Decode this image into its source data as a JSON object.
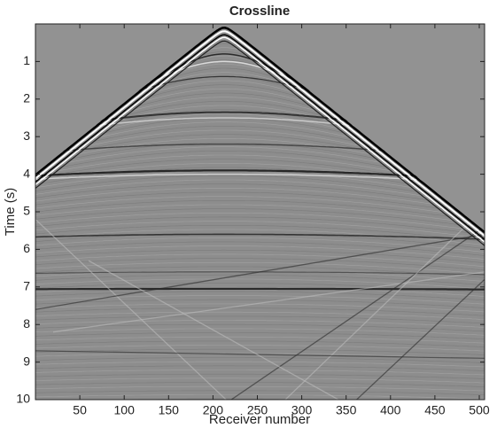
{
  "chart_data": {
    "type": "image",
    "title": "Crossline",
    "x_label": "Receiver number",
    "y_label": "Time (s)",
    "xlim": [
      0,
      506
    ],
    "xticks": [
      50,
      100,
      150,
      200,
      250,
      300,
      350,
      400,
      450,
      500
    ],
    "ylim": [
      0,
      10
    ],
    "yticks": [
      1,
      2,
      3,
      4,
      5,
      6,
      7,
      8,
      9,
      10
    ],
    "y_reversed": true
  }
}
